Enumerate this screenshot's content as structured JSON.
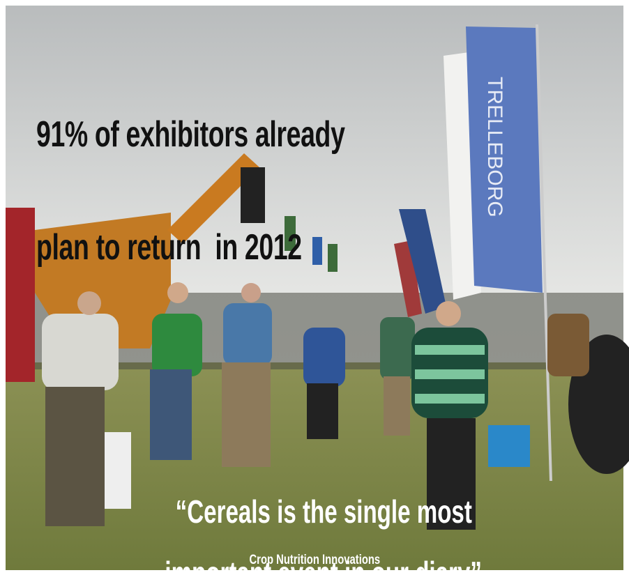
{
  "headline": {
    "lines": [
      "91% of exhibitors already",
      "plan to return  in 2012"
    ]
  },
  "quote": {
    "lines": [
      "“Cereals is the single most",
      "important event in our diary”"
    ]
  },
  "attribution": "Crop Nutrition Innovations",
  "flag_text": "TRELLEBORG"
}
